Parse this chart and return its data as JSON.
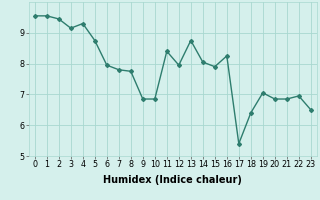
{
  "xlabel": "Humidex (Indice chaleur)",
  "x": [
    0,
    1,
    2,
    3,
    4,
    5,
    6,
    7,
    8,
    9,
    10,
    11,
    12,
    13,
    14,
    15,
    16,
    17,
    18,
    19,
    20,
    21,
    22,
    23
  ],
  "y": [
    9.55,
    9.55,
    9.45,
    9.15,
    9.3,
    8.75,
    7.95,
    7.8,
    7.75,
    6.85,
    6.85,
    8.4,
    7.95,
    8.75,
    8.05,
    7.9,
    8.25,
    5.4,
    6.4,
    7.05,
    6.85,
    6.85,
    6.95,
    6.5
  ],
  "line_color": "#2e7d6e",
  "marker": "D",
  "marker_size": 2.0,
  "bg_color": "#d5f0ec",
  "grid_color": "#a8d8d0",
  "ylim": [
    5,
    10
  ],
  "xlim": [
    -0.5,
    23.5
  ],
  "yticks": [
    5,
    6,
    7,
    8,
    9
  ],
  "xticks": [
    0,
    1,
    2,
    3,
    4,
    5,
    6,
    7,
    8,
    9,
    10,
    11,
    12,
    13,
    14,
    15,
    16,
    17,
    18,
    19,
    20,
    21,
    22,
    23
  ],
  "tick_fontsize": 5.8,
  "xlabel_fontsize": 7.0,
  "line_width": 1.0
}
